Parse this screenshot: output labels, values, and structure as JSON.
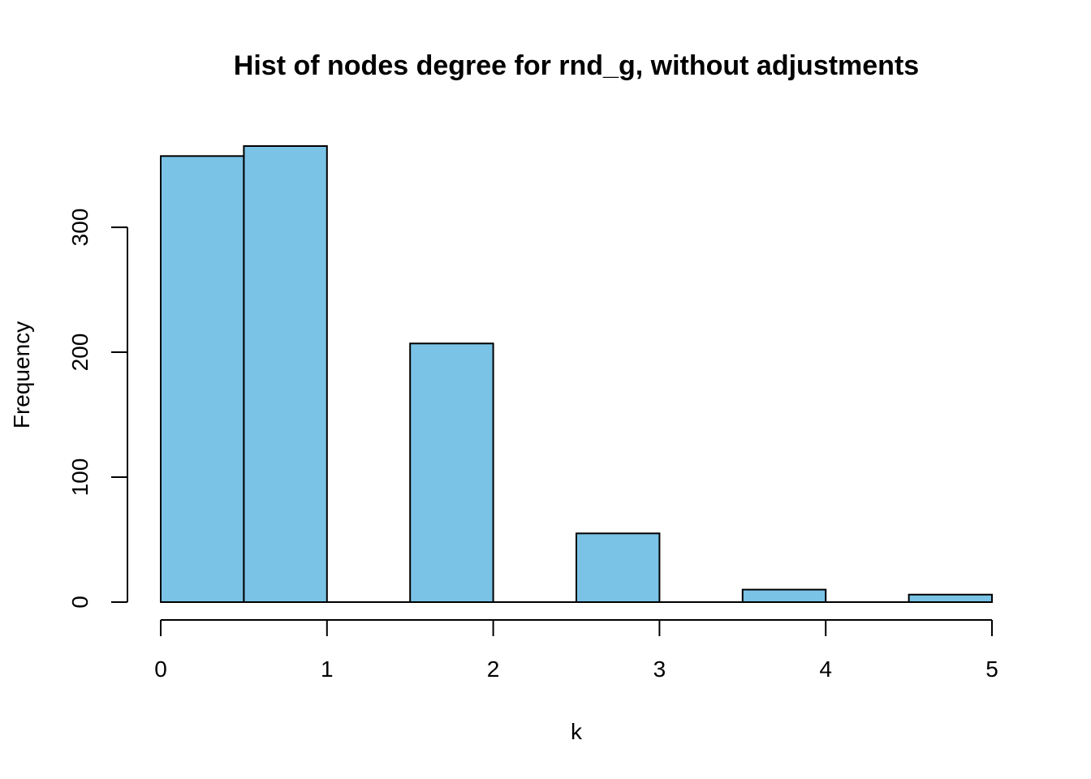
{
  "chart_data": {
    "type": "bar",
    "title": "Hist of nodes degree for rnd_g, without adjustments",
    "xlabel": "k",
    "ylabel": "Frequency",
    "bins": [
      {
        "start": 0.0,
        "end": 0.5,
        "value": 357
      },
      {
        "start": 0.5,
        "end": 1.0,
        "value": 365
      },
      {
        "start": 1.0,
        "end": 1.5,
        "value": 0
      },
      {
        "start": 1.5,
        "end": 2.0,
        "value": 207
      },
      {
        "start": 2.0,
        "end": 2.5,
        "value": 0
      },
      {
        "start": 2.5,
        "end": 3.0,
        "value": 55
      },
      {
        "start": 3.0,
        "end": 3.5,
        "value": 0
      },
      {
        "start": 3.5,
        "end": 4.0,
        "value": 10
      },
      {
        "start": 4.0,
        "end": 4.5,
        "value": 0
      },
      {
        "start": 4.5,
        "end": 5.0,
        "value": 6
      }
    ],
    "xlim": [
      0,
      5
    ],
    "ylim": [
      0,
      365
    ],
    "x_ticks": [
      0,
      1,
      2,
      3,
      4,
      5
    ],
    "y_ticks": [
      0,
      100,
      200,
      300
    ],
    "bar_color": "#7ac3e6",
    "grid": false,
    "legend": "none"
  }
}
